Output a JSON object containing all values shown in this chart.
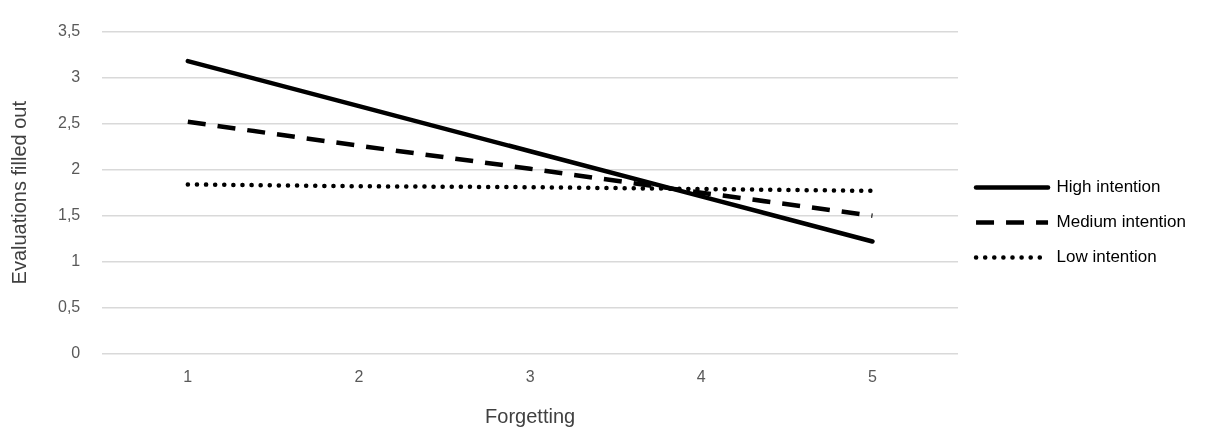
{
  "chart_data": {
    "type": "line",
    "xlabel": "Forgetting",
    "ylabel": "Evaluations filled out",
    "categories": [
      "1",
      "2",
      "3",
      "4",
      "5"
    ],
    "series": [
      {
        "name": "High intention",
        "color": "#000000",
        "line_style": "solid",
        "values": [
          3.18,
          2.69,
          2.2,
          1.71,
          1.22
        ]
      },
      {
        "name": "Medium intention",
        "color": "#000000",
        "line_style": "dashed",
        "values": [
          2.52,
          2.26,
          2.01,
          1.75,
          1.5
        ]
      },
      {
        "name": "Low intention",
        "color": "#000000",
        "line_style": "dotted",
        "values": [
          1.84,
          1.82,
          1.81,
          1.79,
          1.77
        ]
      }
    ],
    "ylim": [
      0,
      3.5
    ],
    "yticks": [
      0,
      {
        "value": 0.5,
        "label": "0,5"
      },
      1,
      {
        "value": 1.5,
        "label": "1,5"
      },
      2,
      {
        "value": 2.5,
        "label": "2,5"
      },
      3,
      {
        "value": 3.5,
        "label": "3,5"
      }
    ],
    "grid": "y",
    "legend": "right",
    "marker": "none"
  }
}
